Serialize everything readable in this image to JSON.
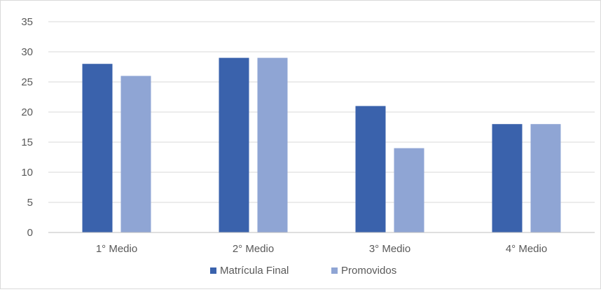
{
  "chart_data": {
    "type": "bar",
    "categories": [
      "1° Medio",
      "2° Medio",
      "3° Medio",
      "4° Medio"
    ],
    "series": [
      {
        "name": "Matrícula Final",
        "values": [
          28,
          29,
          21,
          18
        ],
        "color": "#3a62ac"
      },
      {
        "name": "Promovidos",
        "values": [
          26,
          29,
          14,
          18
        ],
        "color": "#8fa5d4"
      }
    ],
    "ylim": [
      0,
      35
    ],
    "yticks": [
      "0",
      "5",
      "10",
      "15",
      "20",
      "25",
      "30",
      "35"
    ],
    "grid": true,
    "legend_position": "bottom",
    "gridline_color": "#d9d9d9",
    "axis_line_color": "#bfbfbf"
  }
}
